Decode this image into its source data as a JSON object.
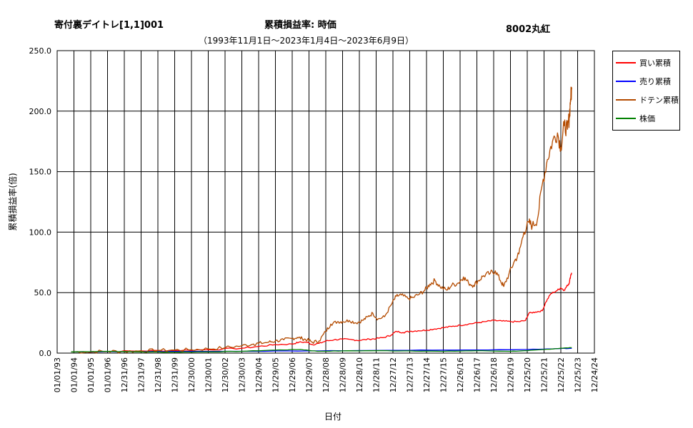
{
  "header": {
    "title_left": "寄付裏デイトレ[1,1]001",
    "title_center": "累積損益率:  時価",
    "title_right": "8002丸紅",
    "subtitle": "（1993年11月1日～2023年1月4日～2023年6月9日）"
  },
  "chart_data": {
    "type": "line",
    "xlabel": "日付",
    "ylabel": "累積損益率(倍)",
    "ylim": [
      0,
      250
    ],
    "y_ticks": [
      "0.0",
      "50.0",
      "100.0",
      "150.0",
      "200.0",
      "250.0"
    ],
    "x_ticks": [
      "01/01/93",
      "01/01/94",
      "01/01/95",
      "01/01/96",
      "12/31/96",
      "12/31/97",
      "12/31/98",
      "12/31/99",
      "12/30/00",
      "12/30/01",
      "12/30/02",
      "12/30/03",
      "12/29/04",
      "12/29/05",
      "12/29/06",
      "12/29/07",
      "12/28/08",
      "12/28/09",
      "12/28/10",
      "12/28/11",
      "12/27/12",
      "12/27/13",
      "12/27/14",
      "12/27/15",
      "12/26/16",
      "12/26/17",
      "12/26/18",
      "12/26/19",
      "12/25/20",
      "12/25/21",
      "12/25/22",
      "12/25/23",
      "12/24/24"
    ],
    "grid": true,
    "legend_position": "right",
    "x_start_year": 1993.0,
    "x_end_year": 2025.0,
    "series": [
      {
        "name": "買い累積",
        "color": "#ff0000",
        "points": [
          [
            1993.83,
            1
          ],
          [
            1996,
            1.3
          ],
          [
            1998,
            1.8
          ],
          [
            2000,
            2.2
          ],
          [
            2002,
            2.8
          ],
          [
            2004,
            4
          ],
          [
            2005,
            5.5
          ],
          [
            2006,
            7
          ],
          [
            2007,
            7.5
          ],
          [
            2007.4,
            9
          ],
          [
            2007.9,
            9
          ],
          [
            2008.2,
            7
          ],
          [
            2008.6,
            8
          ],
          [
            2009,
            10
          ],
          [
            2009.5,
            11
          ],
          [
            2010,
            11.5
          ],
          [
            2010.6,
            11
          ],
          [
            2011,
            10.5
          ],
          [
            2011.6,
            11.5
          ],
          [
            2012,
            12
          ],
          [
            2012.5,
            13
          ],
          [
            2012.9,
            15
          ],
          [
            2013.2,
            18
          ],
          [
            2013.6,
            17
          ],
          [
            2014,
            18
          ],
          [
            2014.5,
            18.5
          ],
          [
            2015,
            19
          ],
          [
            2015.5,
            20
          ],
          [
            2016,
            21
          ],
          [
            2016.5,
            22
          ],
          [
            2017,
            23
          ],
          [
            2017.5,
            24
          ],
          [
            2018,
            25
          ],
          [
            2018.5,
            26
          ],
          [
            2019,
            27
          ],
          [
            2019.5,
            26.5
          ],
          [
            2020,
            26
          ],
          [
            2020.5,
            26
          ],
          [
            2020.9,
            27
          ],
          [
            2021.1,
            33
          ],
          [
            2021.5,
            34
          ],
          [
            2021.9,
            35
          ],
          [
            2022.1,
            42
          ],
          [
            2022.4,
            49
          ],
          [
            2022.8,
            52
          ],
          [
            2023.0,
            54
          ],
          [
            2023.2,
            52
          ],
          [
            2023.4,
            56
          ],
          [
            2023.5,
            58
          ],
          [
            2023.6,
            65
          ],
          [
            2023.65,
            66
          ]
        ]
      },
      {
        "name": "売り累積",
        "color": "#0000ff",
        "points": [
          [
            1993.83,
            1
          ],
          [
            1996,
            1.2
          ],
          [
            1998,
            1.2
          ],
          [
            2000,
            1.4
          ],
          [
            2004,
            1.5
          ],
          [
            2008,
            1.8
          ],
          [
            2012,
            2.2
          ],
          [
            2016,
            2.5
          ],
          [
            2020,
            2.8
          ],
          [
            2022,
            3.3
          ],
          [
            2023,
            3.8
          ],
          [
            2023.65,
            3.9
          ]
        ]
      },
      {
        "name": "ドテン累積",
        "color": "#b44b00",
        "points": [
          [
            1993.83,
            1
          ],
          [
            1995,
            1.2
          ],
          [
            1996,
            1.5
          ],
          [
            1997,
            1.3
          ],
          [
            1998,
            1.8
          ],
          [
            1999,
            2.3
          ],
          [
            2000,
            2.5
          ],
          [
            2001,
            2.8
          ],
          [
            2002,
            3.5
          ],
          [
            2003,
            4.5
          ],
          [
            2004,
            6
          ],
          [
            2004.7,
            7.5
          ],
          [
            2005,
            8
          ],
          [
            2005.6,
            9
          ],
          [
            2006,
            10
          ],
          [
            2006.5,
            11
          ],
          [
            2007,
            12
          ],
          [
            2007.3,
            13
          ],
          [
            2007.6,
            12
          ],
          [
            2007.9,
            11
          ],
          [
            2008.2,
            9
          ],
          [
            2008.6,
            10
          ],
          [
            2009,
            18
          ],
          [
            2009.3,
            24
          ],
          [
            2009.7,
            26
          ],
          [
            2010,
            26
          ],
          [
            2010.4,
            27
          ],
          [
            2010.8,
            25
          ],
          [
            2011.2,
            27
          ],
          [
            2011.5,
            30
          ],
          [
            2011.8,
            33
          ],
          [
            2012.1,
            28
          ],
          [
            2012.5,
            30
          ],
          [
            2012.9,
            40
          ],
          [
            2013.2,
            47
          ],
          [
            2013.5,
            48
          ],
          [
            2013.9,
            45
          ],
          [
            2014.2,
            46
          ],
          [
            2014.6,
            49
          ],
          [
            2014.9,
            52
          ],
          [
            2015.2,
            57
          ],
          [
            2015.5,
            60
          ],
          [
            2015.8,
            55
          ],
          [
            2016.2,
            52
          ],
          [
            2016.5,
            56
          ],
          [
            2016.9,
            58
          ],
          [
            2017.2,
            63
          ],
          [
            2017.5,
            58
          ],
          [
            2017.8,
            56
          ],
          [
            2018.1,
            60
          ],
          [
            2018.4,
            64
          ],
          [
            2018.8,
            66
          ],
          [
            2019.1,
            68
          ],
          [
            2019.4,
            60
          ],
          [
            2019.6,
            55
          ],
          [
            2019.9,
            65
          ],
          [
            2020.2,
            75
          ],
          [
            2020.5,
            82
          ],
          [
            2020.8,
            100
          ],
          [
            2021.1,
            108
          ],
          [
            2021.3,
            105
          ],
          [
            2021.6,
            110
          ],
          [
            2021.9,
            140
          ],
          [
            2022.2,
            160
          ],
          [
            2022.5,
            175
          ],
          [
            2022.8,
            182
          ],
          [
            2023.0,
            170
          ],
          [
            2023.2,
            188
          ],
          [
            2023.4,
            185
          ],
          [
            2023.5,
            195
          ],
          [
            2023.58,
            210
          ],
          [
            2023.65,
            218
          ]
        ]
      },
      {
        "name": "株価",
        "color": "#008000",
        "points": [
          [
            1993.83,
            1
          ],
          [
            1996,
            1.5
          ],
          [
            1998,
            1.0
          ],
          [
            2000,
            0.8
          ],
          [
            2002,
            1.0
          ],
          [
            2004,
            1.5
          ],
          [
            2006,
            2.5
          ],
          [
            2007.5,
            3
          ],
          [
            2008.5,
            1.5
          ],
          [
            2010,
            1.8
          ],
          [
            2012,
            2
          ],
          [
            2014,
            1.8
          ],
          [
            2016,
            1.5
          ],
          [
            2018,
            2
          ],
          [
            2020,
            1.5
          ],
          [
            2021,
            2
          ],
          [
            2022,
            3
          ],
          [
            2023,
            4
          ],
          [
            2023.65,
            4.5
          ]
        ]
      }
    ]
  }
}
